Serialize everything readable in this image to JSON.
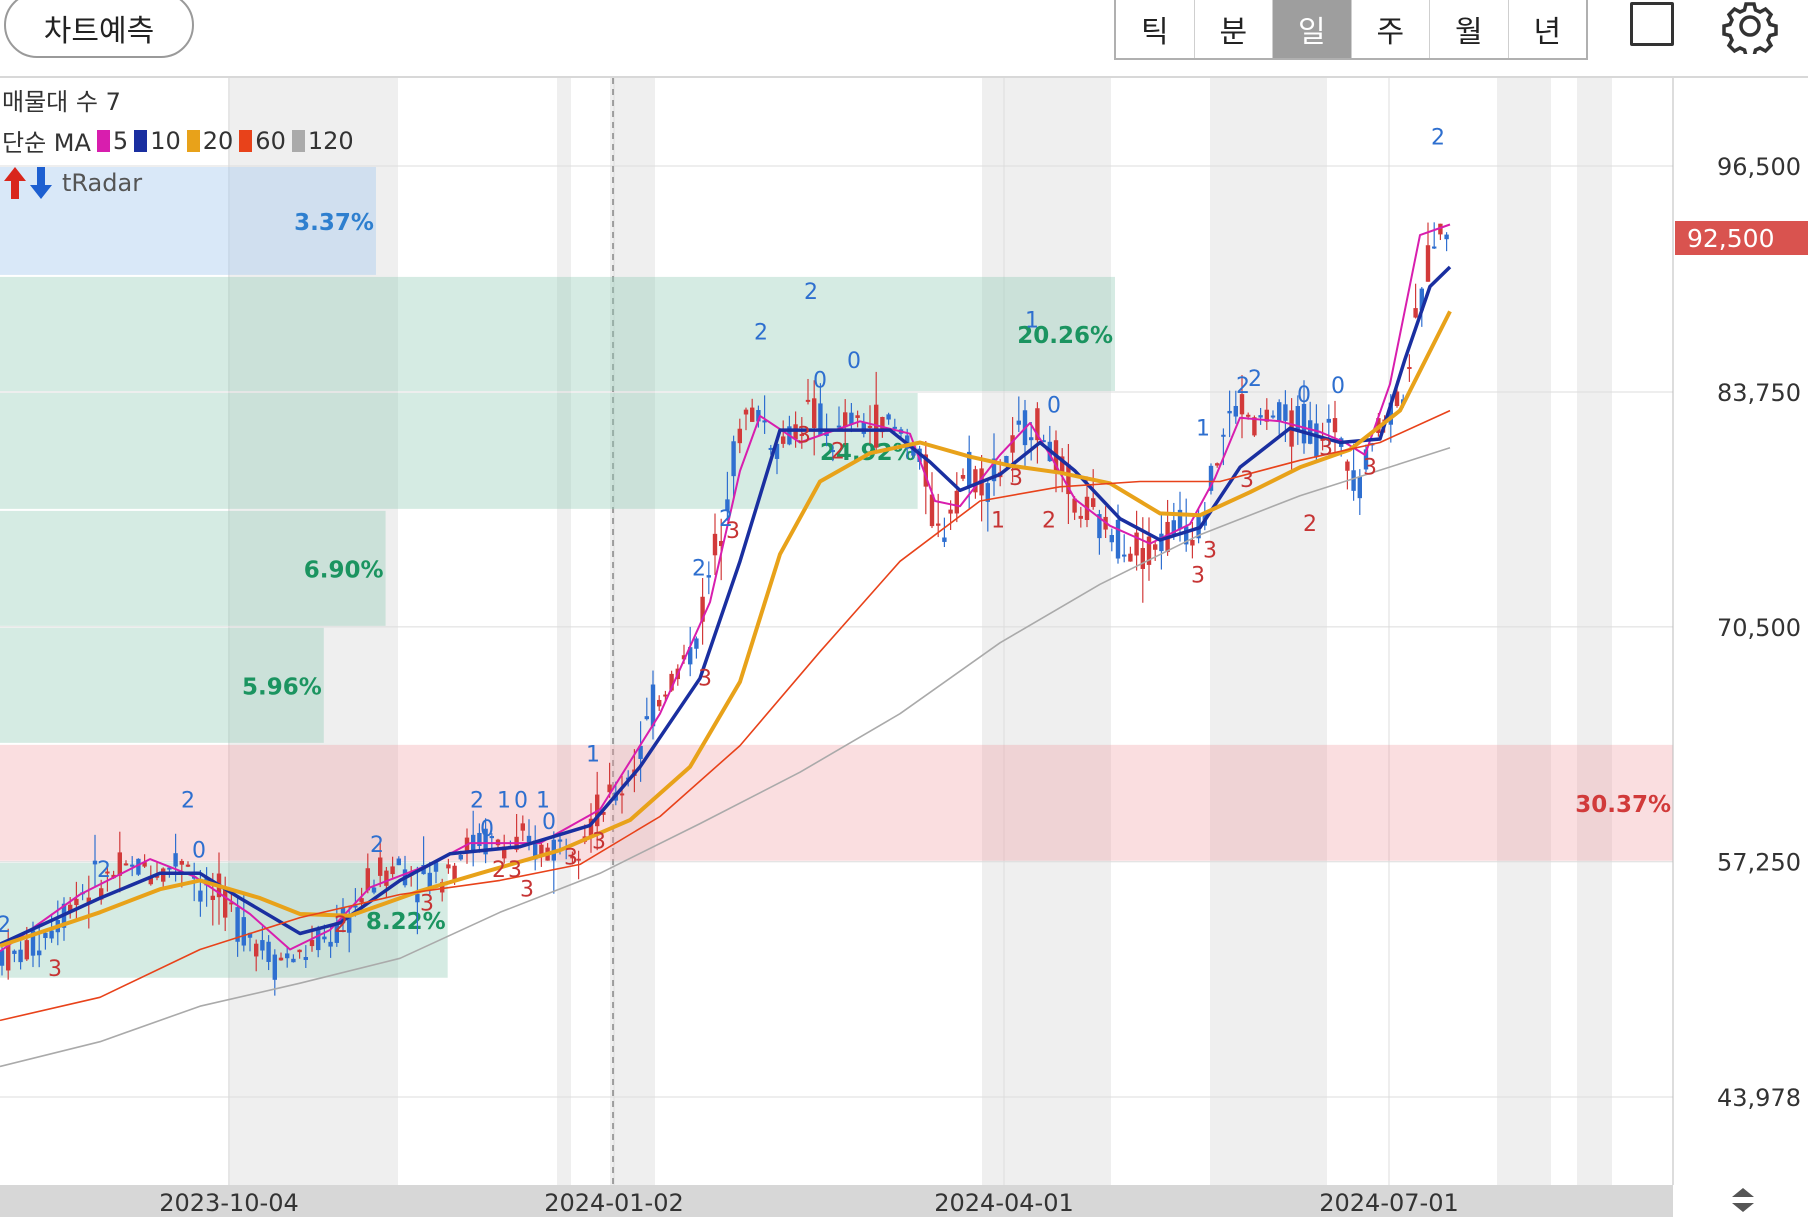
{
  "header": {
    "predict_button": "차트예측",
    "period_tabs": [
      "틱",
      "분",
      "일",
      "주",
      "월",
      "년"
    ],
    "active_period": "일"
  },
  "overlay_labels": {
    "volume_profile": "매물대 수 7",
    "ma_prefix": "단순 MA",
    "ma_periods": [
      "5",
      "10",
      "20",
      "60",
      "120"
    ],
    "radar": "tRadar"
  },
  "colors": {
    "ma5": "#d81eae",
    "ma10": "#1a2fa0",
    "ma20": "#e8a21a",
    "ma60": "#e8421a",
    "ma120": "#aaaaaa",
    "up": "#d23a3a",
    "down": "#2f6fd0",
    "price_badge": "#d9534f"
  },
  "chart_data": {
    "type": "candlestick",
    "current_price": "92,500",
    "y_ticks": [
      "96,500",
      "83,750",
      "70,500",
      "57,250",
      "43,978"
    ],
    "y_tick_values": [
      96500,
      83750,
      70500,
      57250,
      43978
    ],
    "x_ticks": [
      "2023-10-04",
      "2024-01-02",
      "2024-04-01",
      "2024-07-01"
    ],
    "ylim": [
      39000,
      101500
    ],
    "volume_profile_pct": [
      "3.37%",
      "20.26%",
      "24.92%",
      "6.90%",
      "5.96%",
      "30.37%",
      "8.22%"
    ],
    "volume_profile": [
      {
        "pct": "3.37%",
        "bucket": [
          90300,
          96500
        ],
        "share": 0.3372,
        "color": "blue"
      },
      {
        "pct": "20.26%",
        "bucket": [
          83750,
          90300
        ],
        "share": 1.0,
        "color": "green"
      },
      {
        "pct": "24.92%",
        "bucket": [
          77100,
          83750
        ],
        "share": 0.823,
        "color": "green"
      },
      {
        "pct": "6.90%",
        "bucket": [
          70500,
          77100
        ],
        "share": 0.3458,
        "color": "green"
      },
      {
        "pct": "5.96%",
        "bucket": [
          63900,
          70500
        ],
        "share": 0.2904,
        "color": "green"
      },
      {
        "pct": "30.37%",
        "bucket": [
          57250,
          63900
        ],
        "share": 1.505,
        "color": "red"
      },
      {
        "pct": "8.22%",
        "bucket": [
          50650,
          57250
        ],
        "share": 0.4015,
        "color": "green"
      }
    ],
    "price_path": [
      [
        0,
        52200
      ],
      [
        14,
        51800
      ],
      [
        40,
        52800
      ],
      [
        60,
        54200
      ],
      [
        80,
        55600
      ],
      [
        100,
        56100
      ],
      [
        120,
        56600
      ],
      [
        140,
        57000
      ],
      [
        165,
        56700
      ],
      [
        185,
        57800
      ],
      [
        200,
        55800
      ],
      [
        225,
        54900
      ],
      [
        250,
        53200
      ],
      [
        275,
        51800
      ],
      [
        300,
        51900
      ],
      [
        320,
        52600
      ],
      [
        345,
        53600
      ],
      [
        360,
        55200
      ],
      [
        380,
        56700
      ],
      [
        400,
        57100
      ],
      [
        420,
        56300
      ],
      [
        440,
        56600
      ],
      [
        460,
        57800
      ],
      [
        480,
        58500
      ],
      [
        500,
        58200
      ],
      [
        520,
        58100
      ],
      [
        540,
        57900
      ],
      [
        560,
        58200
      ],
      [
        580,
        59000
      ],
      [
        600,
        60000
      ],
      [
        620,
        61200
      ],
      [
        640,
        63500
      ],
      [
        655,
        66300
      ],
      [
        675,
        67800
      ],
      [
        695,
        69500
      ],
      [
        715,
        74800
      ],
      [
        730,
        79200
      ],
      [
        745,
        82400
      ],
      [
        760,
        82600
      ],
      [
        775,
        80600
      ],
      [
        790,
        81300
      ],
      [
        805,
        82600
      ],
      [
        820,
        82100
      ],
      [
        835,
        80800
      ],
      [
        850,
        82200
      ],
      [
        865,
        81800
      ],
      [
        880,
        82100
      ],
      [
        895,
        81600
      ],
      [
        910,
        81100
      ],
      [
        925,
        79200
      ],
      [
        940,
        75200
      ],
      [
        955,
        78300
      ],
      [
        970,
        79400
      ],
      [
        985,
        78700
      ],
      [
        1000,
        79300
      ],
      [
        1015,
        80600
      ],
      [
        1030,
        82300
      ],
      [
        1045,
        81200
      ],
      [
        1060,
        79400
      ],
      [
        1075,
        77300
      ],
      [
        1090,
        76800
      ],
      [
        1105,
        75900
      ],
      [
        1120,
        75600
      ],
      [
        1135,
        75100
      ],
      [
        1150,
        74900
      ],
      [
        1165,
        75600
      ],
      [
        1180,
        76300
      ],
      [
        1195,
        76000
      ],
      [
        1210,
        78400
      ],
      [
        1225,
        81600
      ],
      [
        1240,
        83200
      ],
      [
        1255,
        81800
      ],
      [
        1270,
        82600
      ],
      [
        1285,
        81800
      ],
      [
        1300,
        82200
      ],
      [
        1315,
        81300
      ],
      [
        1330,
        81700
      ],
      [
        1345,
        80700
      ],
      [
        1360,
        78700
      ],
      [
        1375,
        81600
      ],
      [
        1390,
        82700
      ],
      [
        1405,
        84200
      ],
      [
        1420,
        88400
      ],
      [
        1435,
        93100
      ],
      [
        1450,
        92500
      ]
    ],
    "series": [
      {
        "name": "5",
        "values": [
          [
            0,
            52200
          ],
          [
            80,
            55400
          ],
          [
            150,
            57400
          ],
          [
            195,
            56400
          ],
          [
            250,
            54300
          ],
          [
            290,
            52300
          ],
          [
            330,
            53400
          ],
          [
            370,
            55800
          ],
          [
            430,
            57100
          ],
          [
            470,
            58300
          ],
          [
            540,
            58300
          ],
          [
            600,
            60200
          ],
          [
            660,
            65600
          ],
          [
            710,
            71900
          ],
          [
            740,
            79300
          ],
          [
            760,
            82400
          ],
          [
            800,
            80900
          ],
          [
            860,
            82100
          ],
          [
            910,
            81400
          ],
          [
            935,
            77600
          ],
          [
            960,
            77300
          ],
          [
            1000,
            80200
          ],
          [
            1030,
            82000
          ],
          [
            1050,
            80200
          ],
          [
            1075,
            77700
          ],
          [
            1110,
            76200
          ],
          [
            1150,
            75200
          ],
          [
            1190,
            76300
          ],
          [
            1215,
            78900
          ],
          [
            1240,
            82300
          ],
          [
            1280,
            82100
          ],
          [
            1320,
            81500
          ],
          [
            1345,
            80900
          ],
          [
            1365,
            80200
          ],
          [
            1390,
            84200
          ],
          [
            1420,
            92600
          ],
          [
            1450,
            93200
          ]
        ]
      },
      {
        "name": "10",
        "values": [
          [
            0,
            52600
          ],
          [
            100,
            55200
          ],
          [
            160,
            56600
          ],
          [
            200,
            56600
          ],
          [
            240,
            55200
          ],
          [
            300,
            53200
          ],
          [
            340,
            53800
          ],
          [
            400,
            56200
          ],
          [
            450,
            57700
          ],
          [
            520,
            58100
          ],
          [
            590,
            59300
          ],
          [
            640,
            62600
          ],
          [
            700,
            67600
          ],
          [
            740,
            74200
          ],
          [
            780,
            81600
          ],
          [
            830,
            81600
          ],
          [
            890,
            81600
          ],
          [
            930,
            79800
          ],
          [
            960,
            78200
          ],
          [
            1000,
            79100
          ],
          [
            1040,
            80900
          ],
          [
            1075,
            79300
          ],
          [
            1120,
            76600
          ],
          [
            1160,
            75400
          ],
          [
            1200,
            76100
          ],
          [
            1240,
            79500
          ],
          [
            1290,
            81700
          ],
          [
            1340,
            80900
          ],
          [
            1380,
            81100
          ],
          [
            1405,
            85600
          ],
          [
            1430,
            89700
          ],
          [
            1450,
            90800
          ]
        ]
      },
      {
        "name": "20",
        "values": [
          [
            0,
            52500
          ],
          [
            100,
            54400
          ],
          [
            160,
            55700
          ],
          [
            200,
            56200
          ],
          [
            260,
            55200
          ],
          [
            300,
            54300
          ],
          [
            350,
            54200
          ],
          [
            420,
            55600
          ],
          [
            480,
            56600
          ],
          [
            560,
            57900
          ],
          [
            630,
            59600
          ],
          [
            690,
            62600
          ],
          [
            740,
            67400
          ],
          [
            780,
            74600
          ],
          [
            820,
            78700
          ],
          [
            870,
            80300
          ],
          [
            920,
            80900
          ],
          [
            970,
            80100
          ],
          [
            1010,
            79600
          ],
          [
            1060,
            79200
          ],
          [
            1110,
            78600
          ],
          [
            1160,
            76900
          ],
          [
            1200,
            76800
          ],
          [
            1250,
            78100
          ],
          [
            1300,
            79500
          ],
          [
            1350,
            80500
          ],
          [
            1400,
            82700
          ],
          [
            1450,
            88300
          ]
        ]
      },
      {
        "name": "60",
        "values": [
          [
            0,
            48300
          ],
          [
            100,
            49600
          ],
          [
            200,
            52300
          ],
          [
            300,
            54100
          ],
          [
            400,
            55400
          ],
          [
            500,
            56200
          ],
          [
            580,
            57100
          ],
          [
            660,
            59800
          ],
          [
            740,
            63800
          ],
          [
            820,
            69100
          ],
          [
            900,
            74200
          ],
          [
            980,
            77600
          ],
          [
            1060,
            78400
          ],
          [
            1140,
            78700
          ],
          [
            1220,
            78700
          ],
          [
            1300,
            79900
          ],
          [
            1380,
            80900
          ],
          [
            1450,
            82700
          ]
        ]
      },
      {
        "name": "120",
        "values": [
          [
            0,
            45700
          ],
          [
            100,
            47100
          ],
          [
            200,
            49100
          ],
          [
            300,
            50400
          ],
          [
            400,
            51800
          ],
          [
            500,
            54400
          ],
          [
            600,
            56600
          ],
          [
            700,
            59400
          ],
          [
            800,
            62300
          ],
          [
            900,
            65600
          ],
          [
            1000,
            69600
          ],
          [
            1100,
            72900
          ],
          [
            1200,
            75700
          ],
          [
            1300,
            77900
          ],
          [
            1400,
            79700
          ],
          [
            1450,
            80600
          ]
        ]
      }
    ],
    "markers": [
      {
        "text": "2",
        "x": 4,
        "y": 53300,
        "c": "b"
      },
      {
        "text": "3",
        "x": 55,
        "y": 50800,
        "c": "r"
      },
      {
        "text": "2",
        "x": 104,
        "y": 56400,
        "c": "b"
      },
      {
        "text": "2",
        "x": 188,
        "y": 60300,
        "c": "b"
      },
      {
        "text": "0",
        "x": 199,
        "y": 57500,
        "c": "b"
      },
      {
        "text": "2",
        "x": 341,
        "y": 53300,
        "c": "r"
      },
      {
        "text": "2",
        "x": 377,
        "y": 57800,
        "c": "b"
      },
      {
        "text": "3",
        "x": 427,
        "y": 54500,
        "c": "r"
      },
      {
        "text": "2",
        "x": 477,
        "y": 60300,
        "c": "b"
      },
      {
        "text": "0",
        "x": 487,
        "y": 58700,
        "c": "b"
      },
      {
        "text": "1",
        "x": 504,
        "y": 60300,
        "c": "b"
      },
      {
        "text": "0",
        "x": 521,
        "y": 60300,
        "c": "b"
      },
      {
        "text": "1",
        "x": 543,
        "y": 60300,
        "c": "b"
      },
      {
        "text": "0",
        "x": 549,
        "y": 59100,
        "c": "b"
      },
      {
        "text": "2",
        "x": 499,
        "y": 56400,
        "c": "r"
      },
      {
        "text": "3",
        "x": 515,
        "y": 56400,
        "c": "r"
      },
      {
        "text": "3",
        "x": 527,
        "y": 55300,
        "c": "r"
      },
      {
        "text": "3",
        "x": 571,
        "y": 57100,
        "c": "r"
      },
      {
        "text": "3",
        "x": 599,
        "y": 58000,
        "c": "r"
      },
      {
        "text": "1",
        "x": 593,
        "y": 62900,
        "c": "b"
      },
      {
        "text": "3",
        "x": 705,
        "y": 67200,
        "c": "r"
      },
      {
        "text": "2",
        "x": 699,
        "y": 73400,
        "c": "b"
      },
      {
        "text": "2",
        "x": 726,
        "y": 76200,
        "c": "b"
      },
      {
        "text": "3",
        "x": 733,
        "y": 75500,
        "c": "r"
      },
      {
        "text": "2",
        "x": 761,
        "y": 86700,
        "c": "b"
      },
      {
        "text": "2",
        "x": 811,
        "y": 89000,
        "c": "b"
      },
      {
        "text": "0",
        "x": 820,
        "y": 84000,
        "c": "b"
      },
      {
        "text": "3",
        "x": 804,
        "y": 80900,
        "c": "r"
      },
      {
        "text": "0",
        "x": 854,
        "y": 85100,
        "c": "b"
      },
      {
        "text": "2",
        "x": 838,
        "y": 80000,
        "c": "r"
      },
      {
        "text": "1",
        "x": 1032,
        "y": 87400,
        "c": "b"
      },
      {
        "text": "0",
        "x": 1054,
        "y": 82600,
        "c": "b"
      },
      {
        "text": "3",
        "x": 1016,
        "y": 78500,
        "c": "r"
      },
      {
        "text": "1",
        "x": 998,
        "y": 76100,
        "c": "r"
      },
      {
        "text": "2",
        "x": 1049,
        "y": 76100,
        "c": "r"
      },
      {
        "text": "3",
        "x": 1210,
        "y": 74400,
        "c": "r"
      },
      {
        "text": "3",
        "x": 1198,
        "y": 73000,
        "c": "r"
      },
      {
        "text": "1",
        "x": 1203,
        "y": 81300,
        "c": "b"
      },
      {
        "text": "2",
        "x": 1243,
        "y": 83700,
        "c": "b"
      },
      {
        "text": "2",
        "x": 1255,
        "y": 84100,
        "c": "b"
      },
      {
        "text": "3",
        "x": 1247,
        "y": 78400,
        "c": "r"
      },
      {
        "text": "0",
        "x": 1304,
        "y": 83200,
        "c": "b"
      },
      {
        "text": "3",
        "x": 1326,
        "y": 80200,
        "c": "r"
      },
      {
        "text": "2",
        "x": 1310,
        "y": 75900,
        "c": "r"
      },
      {
        "text": "0",
        "x": 1338,
        "y": 83700,
        "c": "b"
      },
      {
        "text": "3",
        "x": 1370,
        "y": 79100,
        "c": "r"
      },
      {
        "text": "2",
        "x": 1438,
        "y": 97700,
        "c": "b"
      }
    ]
  }
}
